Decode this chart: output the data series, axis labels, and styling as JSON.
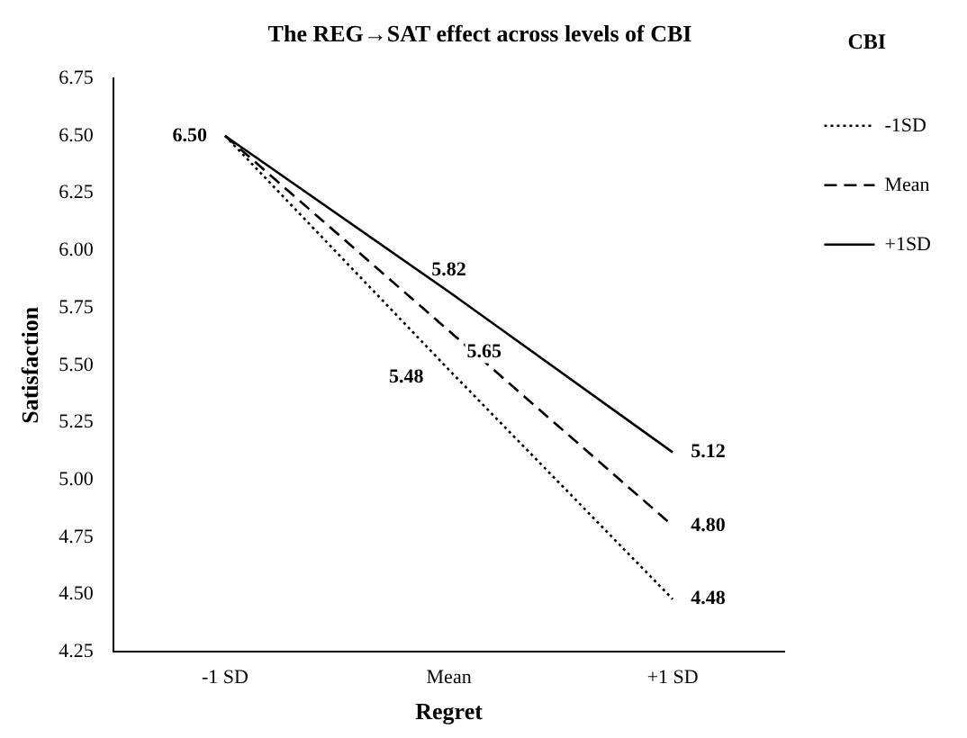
{
  "chart_data": {
    "type": "line",
    "title": "The REG→SAT effect across levels of CBI",
    "xlabel": "Regret",
    "ylabel": "Satisfaction",
    "legend_title": "CBI",
    "categories": [
      "-1 SD",
      "Mean",
      "+1 SD"
    ],
    "series": [
      {
        "name": "-1SD",
        "color": "#000000",
        "line_style": "dotted",
        "values": [
          6.5,
          5.48,
          4.48
        ],
        "value_labels": [
          null,
          "5.48",
          "4.48"
        ]
      },
      {
        "name": "Mean",
        "color": "#000000",
        "line_style": "dashed",
        "values": [
          6.5,
          5.65,
          4.8
        ],
        "value_labels": [
          null,
          "5.65",
          "4.80"
        ]
      },
      {
        "name": "+1SD",
        "color": "#000000",
        "line_style": "solid",
        "values": [
          6.5,
          5.82,
          5.12
        ],
        "value_labels": [
          "6.50",
          "5.82",
          "5.12"
        ]
      }
    ],
    "ylim": [
      4.25,
      6.75
    ],
    "yticks": [
      {
        "value": 4.25,
        "label": "4.25"
      },
      {
        "value": 4.5,
        "label": "4.50"
      },
      {
        "value": 4.75,
        "label": "4.75"
      },
      {
        "value": 5,
        "label": "5.00"
      },
      {
        "value": 5.25,
        "label": "5.25"
      },
      {
        "value": 5.5,
        "label": "5.50"
      },
      {
        "value": 5.75,
        "label": "5.75"
      },
      {
        "value": 6,
        "label": "6.00"
      },
      {
        "value": 6.25,
        "label": "6.25"
      },
      {
        "value": 6.5,
        "label": "6.50"
      },
      {
        "value": 6.75,
        "label": "6.75"
      }
    ],
    "grid": false,
    "legend": "right",
    "marker": "none"
  }
}
